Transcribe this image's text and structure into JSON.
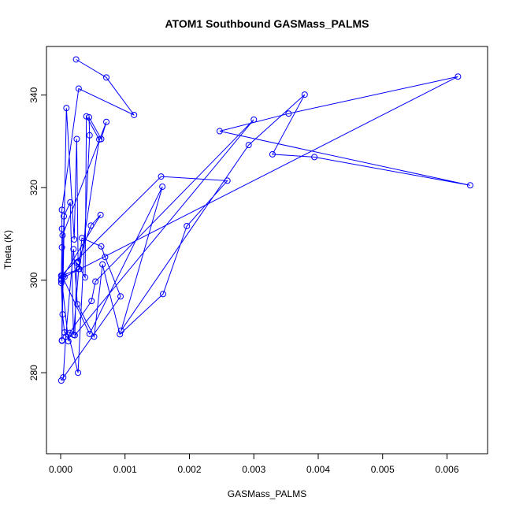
{
  "chart_data": {
    "type": "scatter",
    "title": "ATOM1 Southbound GASMass_PALMS",
    "xlabel": "GASMass_PALMS",
    "ylabel": "Theta (K)",
    "xlim": [
      -0.00022,
      0.00663
    ],
    "ylim": [
      262.5,
      350.5
    ],
    "x_ticks": [
      0,
      0.001,
      0.002,
      0.003,
      0.004,
      0.005,
      0.006
    ],
    "x_tick_labels": [
      "0.000",
      "0.001",
      "0.002",
      "0.003",
      "0.004",
      "0.005",
      "0.006"
    ],
    "y_ticks": [
      280,
      300,
      320,
      340
    ],
    "y_tick_labels": [
      "280",
      "300",
      "320",
      "340"
    ],
    "marker": "open-circle",
    "connected": true,
    "grid": false,
    "legend": "none",
    "color": "#0000ff",
    "series": [
      {
        "x": [
          0.00024,
          0.00071,
          0.00114,
          0.00028,
          2e-05,
          2e-05,
          2e-05,
          1e-05,
          1e-05,
          1e-05,
          3e-05,
          6e-05,
          0.00012,
          0.00027,
          0.00045,
          0.00044,
          0.00063,
          0.00071,
          3e-05,
          2e-05,
          9e-05,
          0.00021,
          0.00025,
          0.00027,
          0.00047,
          0.00062,
          4e-05,
          2e-05,
          5e-05,
          0.00015,
          0.0002,
          0.00028,
          0.00033,
          0.00063,
          0.00069,
          0.00093,
          1e-05,
          4e-05,
          8e-05,
          0.0002,
          0.00026,
          0.00052,
          0.00065,
          0.00092,
          0.00159,
          0.00196,
          0.00259,
          0.00156,
          1e-05,
          0.00012,
          0.00014,
          0.00048,
          0.00054,
          0.003,
          0.00022,
          0.00025,
          0.00038,
          0.0004,
          0.0006,
          0.00029,
          2e-05,
          0.00045,
          0.00158,
          0.00094,
          0.00292,
          0.00379,
          0.00329,
          0.00394,
          0.00636,
          0.00247,
          0.00354,
          0.00617,
          6e-05
        ]
      }
    ],
    "y": [
      347.7,
      343.8,
      335.7,
      341.4,
      315.2,
      311.1,
      307.1,
      300.2,
      299.9,
      299.4,
      292.6,
      288.7,
      288.2,
      280.0,
      331.3,
      335.2,
      330.5,
      334.2,
      309.7,
      287.0,
      337.2,
      308.8,
      330.5,
      304.0,
      311.8,
      314.1,
      300.9,
      286.9,
      313.8,
      316.8,
      288.2,
      302.4,
      309.1,
      307.3,
      305.0,
      296.5,
      278.3,
      279.0,
      287.8,
      306.7,
      294.8,
      287.8,
      303.4,
      288.3,
      297.0,
      311.7,
      321.5,
      322.4,
      301.0,
      286.8,
      288.6,
      295.5,
      299.7,
      334.7,
      288.1,
      303.8,
      300.6,
      335.4,
      330.4,
      302.4,
      301.0,
      288.4,
      320.2,
      289.1,
      329.2,
      340.1,
      327.2,
      326.6,
      320.5,
      332.2,
      336.0,
      344.0,
      300.7
    ]
  }
}
